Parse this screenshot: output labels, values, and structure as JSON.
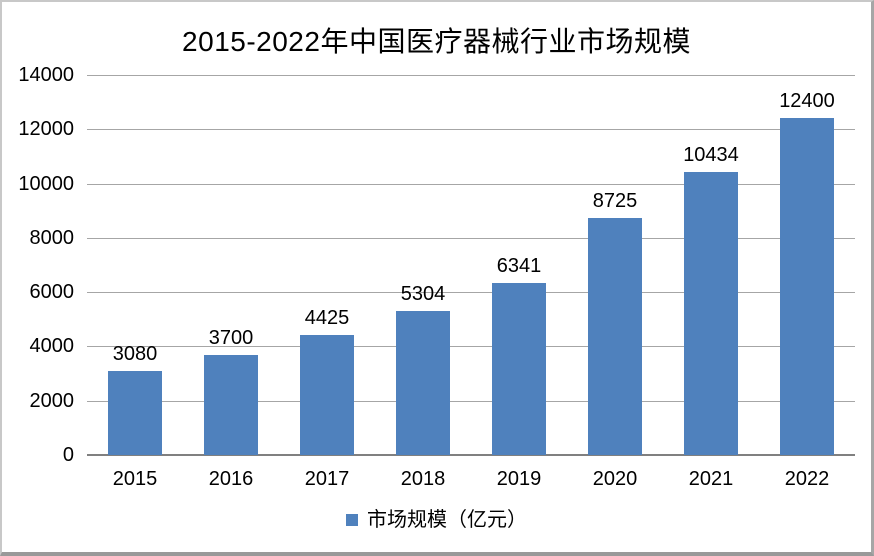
{
  "chart_data": {
    "type": "bar",
    "title": "2015-2022年中国医疗器械行业市场规模",
    "categories": [
      "2015",
      "2016",
      "2017",
      "2018",
      "2019",
      "2020",
      "2021",
      "2022"
    ],
    "series": [
      {
        "name": "市场规模（亿元）",
        "values": [
          3080,
          3700,
          4425,
          5304,
          6341,
          8725,
          10434,
          12400
        ]
      }
    ],
    "ylim": [
      0,
      14000
    ],
    "yticks": [
      0,
      2000,
      4000,
      6000,
      8000,
      10000,
      12000,
      14000
    ],
    "grid": true,
    "vertical_grid": false,
    "data_labels": true,
    "legend_position": "bottom",
    "colors": {
      "bar": "#4f81bd",
      "gridline": "#a6a6a6",
      "axis": "#808080",
      "text": "#000000",
      "frame_border": "#a6a6a6",
      "background": "#ffffff"
    }
  }
}
